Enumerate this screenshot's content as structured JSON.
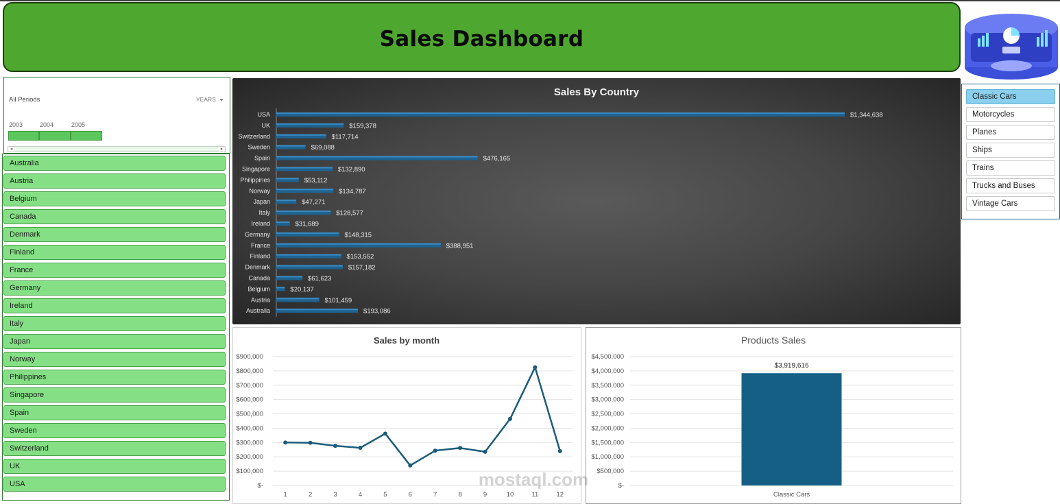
{
  "header": {
    "title": "Sales Dashboard"
  },
  "timeline": {
    "label": "All Periods",
    "unit": "YEARS",
    "years": [
      "2003",
      "2004",
      "2005"
    ]
  },
  "countries": [
    "Australia",
    "Austria",
    "Belgium",
    "Canada",
    "Denmark",
    "Finland",
    "France",
    "Germany",
    "Ireland",
    "Italy",
    "Japan",
    "Norway",
    "Philippines",
    "Singapore",
    "Spain",
    "Sweden",
    "Switzerland",
    "UK",
    "USA"
  ],
  "products": {
    "items": [
      "Classic Cars",
      "Motorcycles",
      "Planes",
      "Ships",
      "Trains",
      "Trucks and Buses",
      "Vintage Cars"
    ],
    "selected": "Classic Cars"
  },
  "colors": {
    "header": "#4ea72e",
    "slicer_button": "#85e085",
    "bar": "#1f6391",
    "line": "#1b5b7a",
    "product_bar": "#155f86",
    "product_selected": "#8ad0ee"
  },
  "watermark": {
    "text": "mostaql.com"
  },
  "chart_data": [
    {
      "type": "bar",
      "orientation": "horizontal",
      "title": "Sales By Country",
      "categories": [
        "USA",
        "UK",
        "Switzerland",
        "Sweden",
        "Spain",
        "Singapore",
        "Philippines",
        "Norway",
        "Japan",
        "Italy",
        "Ireland",
        "Germany",
        "France",
        "Finland",
        "Denmark",
        "Canada",
        "Belgium",
        "Austria",
        "Australia"
      ],
      "values": [
        1344638,
        159378,
        117714,
        69088,
        476165,
        132890,
        53112,
        134787,
        47271,
        128577,
        31689,
        148315,
        388951,
        153552,
        157182,
        61623,
        20137,
        101459,
        193086
      ],
      "labels": [
        "$1,344,638",
        "$159,378",
        "$117,714",
        "$69,088",
        "$476,165",
        "$132,890",
        "$53,112",
        "$134,787",
        "$47,271",
        "$128,577",
        "$31,689",
        "$148,315",
        "$388,951",
        "$153,552",
        "$157,182",
        "$61,623",
        "$20,137",
        "$101,459",
        "$193,086"
      ]
    },
    {
      "type": "line",
      "title": "Sales by month",
      "x": [
        1,
        2,
        3,
        4,
        5,
        6,
        7,
        8,
        9,
        10,
        11,
        12
      ],
      "values": [
        300000,
        298000,
        277000,
        263000,
        362000,
        140000,
        243000,
        262000,
        235000,
        465000,
        825000,
        240000
      ],
      "ylim": [
        0,
        900000
      ],
      "yticks": [
        "$-",
        "$100,000",
        "$200,000",
        "$300,000",
        "$400,000",
        "$500,000",
        "$600,000",
        "$700,000",
        "$800,000",
        "$900,000"
      ],
      "grid": true
    },
    {
      "type": "bar",
      "title": "Products Sales",
      "categories": [
        "Classic Cars"
      ],
      "values": [
        3919616
      ],
      "labels": [
        "$3,919,616"
      ],
      "ylim": [
        0,
        4500000
      ],
      "yticks": [
        "$-",
        "$500,000",
        "$1,000,000",
        "$1,500,000",
        "$2,000,000",
        "$2,500,000",
        "$3,000,000",
        "$3,500,000",
        "$4,000,000",
        "$4,500,000"
      ],
      "grid": true
    }
  ]
}
